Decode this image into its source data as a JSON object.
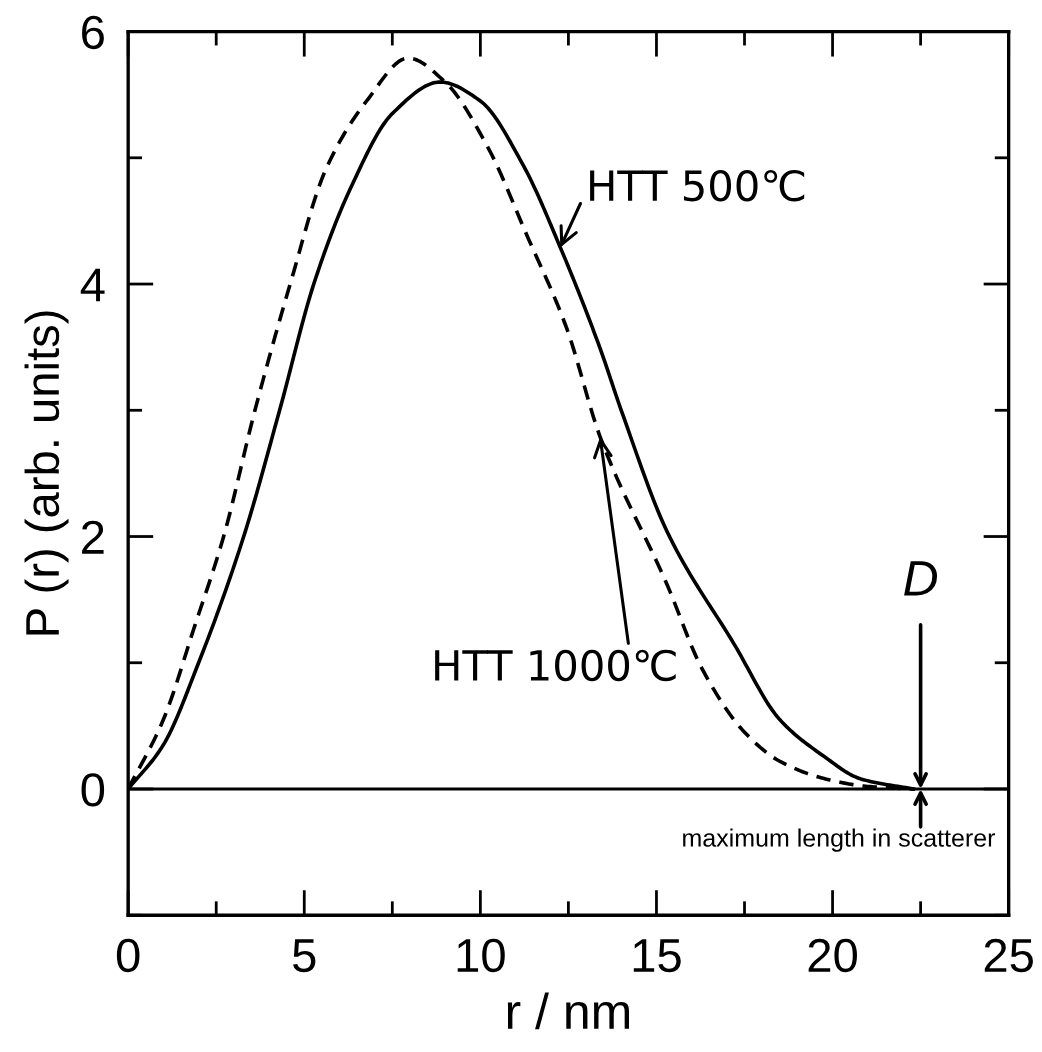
{
  "chart_data": {
    "type": "line",
    "xlabel": "r / nm",
    "ylabel": "P (r) (arb. units)",
    "xlim": [
      0,
      25
    ],
    "ylim": [
      -1,
      6
    ],
    "xticks": [
      0,
      {
        "value": 2.5,
        "label": null
      },
      5,
      {
        "value": 7.5,
        "label": null
      },
      10,
      {
        "value": 12.5,
        "label": null
      },
      15,
      {
        "value": 17.5,
        "label": null
      },
      20,
      {
        "value": 22.5,
        "label": null
      },
      25
    ],
    "yticks": [
      {
        "value": -1,
        "label": null
      },
      0,
      {
        "value": 1,
        "label": null
      },
      2,
      {
        "value": 3,
        "label": null
      },
      4,
      {
        "value": 5,
        "label": null
      },
      6
    ],
    "grid": false,
    "legend": false,
    "marker": "none",
    "series": [
      {
        "name": "HTT 500℃",
        "color": "#000000",
        "line_style": "solid",
        "x": [
          0,
          1,
          2,
          3.28,
          4.3,
          5.27,
          6.3,
          7.5,
          8.86,
          10,
          11.2,
          12.27,
          13.4,
          14,
          15.3,
          17.2,
          18.5,
          19.7,
          20.8,
          22.3
        ],
        "values": [
          0,
          0.35,
          1.0,
          2.0,
          3.0,
          4.0,
          4.75,
          5.35,
          5.6,
          5.45,
          4.95,
          4.29,
          3.49,
          3.0,
          2.04,
          1.15,
          0.55,
          0.27,
          0.08,
          0
        ]
      },
      {
        "name": "HTT 1000℃",
        "color": "#000000",
        "line_style": "dashed",
        "x": [
          0,
          1,
          1.9,
          2.71,
          3.6,
          4.6,
          5.6,
          6.77,
          7.95,
          9,
          10.2,
          11.3,
          12.45,
          13.4,
          15.3,
          16.3,
          17.5,
          18.5,
          19.8,
          21,
          22.3
        ],
        "values": [
          0,
          0.55,
          1.3,
          2.0,
          3.0,
          4.0,
          4.9,
          5.45,
          5.79,
          5.6,
          5.09,
          4.4,
          3.65,
          2.79,
          1.62,
          0.95,
          0.45,
          0.22,
          0.08,
          0.02,
          0
        ]
      }
    ],
    "ref_lines": [
      {
        "axis": "y",
        "value": 0,
        "color": "#000000",
        "line_style": "solid"
      }
    ],
    "annotations": [
      {
        "text": "D",
        "x": 22.5,
        "y": 0
      },
      "maximum length in scatterer"
    ]
  }
}
